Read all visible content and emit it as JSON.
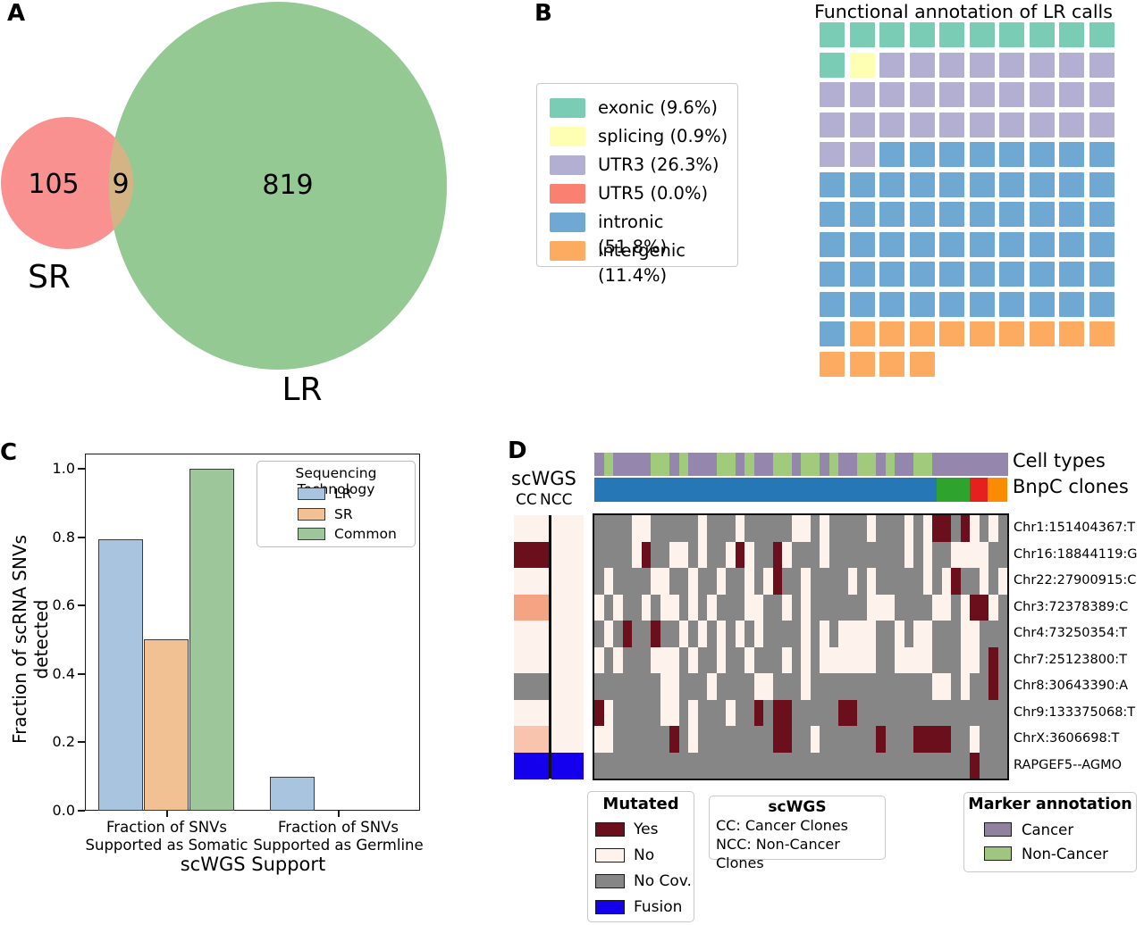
{
  "figure": {
    "panel_a": {
      "label": "A",
      "sr_value": "105",
      "overlap_value": "9",
      "lr_value": "819",
      "sr_label": "SR",
      "lr_label": "LR",
      "colors": {
        "sr": "#f99191",
        "lr": "#94c994",
        "overlap": "#d4b485"
      }
    },
    "panel_b": {
      "label": "B",
      "title": "Functional annotation of LR calls",
      "legend": [
        {
          "code": "E",
          "label": "exonic (9.6%)",
          "color": "#7bccb5"
        },
        {
          "code": "S",
          "label": "splicing (0.9%)",
          "color": "#ffffb3"
        },
        {
          "code": "U",
          "label": "UTR3 (26.3%)",
          "color": "#b3afd3"
        },
        {
          "code": "V",
          "label": "UTR5 (0.0%)",
          "color": "#fa8072"
        },
        {
          "code": "I",
          "label": "intronic (51.8%)",
          "color": "#6fa8d2"
        },
        {
          "code": "N",
          "label": "intergenic (11.4%)",
          "color": "#fcab60"
        }
      ],
      "waffle_rows": [
        "EEEEEEEEEE",
        "ESUUUUUUUU",
        "UUUUUUUUUU",
        "UUUUUUUUUU",
        "UUIIIIIIII",
        "IIIIIIIIII",
        "IIIIIIIIII",
        "IIIIIIIIII",
        "IIIIIIIIII",
        "IIIIIIIIII",
        "INNNNNNNNN",
        "NNNN......"
      ]
    },
    "panel_c": {
      "label": "C",
      "ylabel_line1": "Fraction of scRNA SNVs",
      "ylabel_line2": "detected",
      "xlabel": "scWGS Support",
      "yticks": [
        "1.0",
        "0.8",
        "0.6",
        "0.4",
        "0.2",
        "0.0"
      ],
      "groups": [
        {
          "line1": "Fraction of SNVs",
          "line2": "Supported as Somatic"
        },
        {
          "line1": "Fraction of SNVs",
          "line2": "Supported as Germline"
        }
      ],
      "legend_title": "Sequencing Technology",
      "series": [
        {
          "name": "LR",
          "color": "#a9c4de",
          "values": [
            0.795,
            0.098
          ]
        },
        {
          "name": "SR",
          "color": "#f1c194",
          "values": [
            0.5,
            0
          ]
        },
        {
          "name": "Common",
          "color": "#9ec69b",
          "values": [
            1.0,
            0
          ]
        }
      ]
    },
    "panel_d": {
      "label": "D",
      "scwgs_header": "scWGS",
      "cc_label": "CC",
      "ncc_label": "NCC",
      "celltypes_label": "Cell types",
      "bnpc_label": "BnpC clones",
      "celltype_colors": {
        "P": "#9486ac",
        "G": "#a1ca7c"
      },
      "celltypes_cols": "PGPPPPGGPGPPPGGPGPPGGPGGPGPPGGPGPPGGPPPPPPPP",
      "bnpc_segments": [
        {
          "color": "#2577b5",
          "pct": 83.0
        },
        {
          "color": "#2ea32d",
          "pct": 8.0
        },
        {
          "color": "#e6201e",
          "pct": 4.3
        },
        {
          "color": "#fb8b01",
          "pct": 4.7
        }
      ],
      "cell_colors": {
        "G": "#868686",
        "W": "#fdf3ec",
        "R": "#6b0f1d",
        "B": "#1500ee",
        "S": "#f5a483",
        "T": "#f9c4ad"
      },
      "cc_col": "WRWSWWGWTB",
      "ncc_col": "WWWWWWWWWB",
      "heatmap_rows": [
        "GGGGWWGGGGGWGGGWGGGGGWWGWGGGGWGGGWGWRRGRWGWG",
        "GGGGWRGGWWGWGGWRWGGRWGGGWGGGGGGGGWGWGGWWWWGG",
        "GWGGGGWWGGWGGWGGWGWRGGWGGGGWGWGGGGGWGWRGGWGW",
        "WGWGGWGWWGWGWGGGWWGGWGWGGGGGGWWWGGGGWWGWRRWG",
        "GWGRGGRGGWGWGWGWGWGGGGWGWGWWWWGGWGWWGGGWWGGG",
        "WGWGGGWWWGWGGWGGWGGGWGWGWWWWWWGGWWWWGGGWWGRG",
        "GGGGGGGWWGGGWGGGGWWGGGWGGGGGGGGGGGGGWWGWGGRG",
        "RWGGGGGWWGWGGGWGGRGRRGGGGGRRGGGGGGGGGGGGGGGG",
        "WWGGGGGGRGWGGGGGGGGRRGGWGGGGGGRGGGRRRRGGWGGG",
        "GGGGGGGGGGGGGGGGGGGGGGGGGGGGGGGGGGGGGGGGRGGG"
      ],
      "row_labels": [
        "Chr1:151404367:T",
        "Chr16:18844119:G",
        "Chr22:27900915:C",
        "Chr3:72378389:C",
        "Chr4:73250354:T",
        "Chr7:25123800:T",
        "Chr8:30643390:A",
        "Chr9:133375068:T",
        "ChrX:3606698:T",
        "RAPGEF5--AGMO"
      ],
      "legend_mutated": {
        "title": "Mutated",
        "items": [
          {
            "label": "Yes",
            "color": "#6b0f1d"
          },
          {
            "label": "No",
            "color": "#fdf3ec"
          },
          {
            "label": "No Cov.",
            "color": "#868686"
          },
          {
            "label": "Fusion",
            "color": "#1500ee"
          }
        ]
      },
      "legend_scwgs": {
        "title": "scWGS",
        "line1": "CC: Cancer Clones",
        "line2": "NCC: Non-Cancer Clones"
      },
      "legend_marker": {
        "title": "Marker annotation",
        "items": [
          {
            "label": "Cancer",
            "color": "#90829f"
          },
          {
            "label": "Non-Cancer",
            "color": "#a0c581"
          }
        ]
      }
    }
  },
  "chart_data": [
    {
      "type": "venn",
      "panel": "A",
      "sets": [
        "SR",
        "LR"
      ],
      "values": {
        "SR_only": 105,
        "SR_and_LR": 9,
        "LR_only": 819
      }
    },
    {
      "type": "waffle",
      "panel": "B",
      "title": "Functional annotation of LR calls",
      "categories": [
        "exonic",
        "splicing",
        "UTR3",
        "UTR5",
        "intronic",
        "intergenic"
      ],
      "percentages": [
        9.6,
        0.9,
        26.3,
        0.0,
        51.8,
        11.4
      ],
      "square_counts": [
        11,
        1,
        30,
        0,
        59,
        13
      ],
      "grid": {
        "rows": 12,
        "cols": 10
      },
      "legend_position": "left"
    },
    {
      "type": "bar",
      "panel": "C",
      "categories": [
        "Fraction of SNVs Supported as Somatic",
        "Fraction of SNVs Supported as Germline"
      ],
      "series": [
        {
          "name": "LR",
          "values": [
            0.79,
            0.1
          ]
        },
        {
          "name": "SR",
          "values": [
            0.5,
            0.0
          ]
        },
        {
          "name": "Common",
          "values": [
            1.0,
            0.0
          ]
        }
      ],
      "xlabel": "scWGS Support",
      "ylabel": "Fraction of scRNA SNVs detected",
      "ylim": [
        0.0,
        1.05
      ],
      "yticks": [
        0.0,
        0.2,
        0.4,
        0.6,
        0.8,
        1.0
      ],
      "legend_title": "Sequencing Technology",
      "legend_position": "upper right"
    },
    {
      "type": "heatmap",
      "panel": "D",
      "rows": [
        "Chr1:151404367:T",
        "Chr16:18844119:G",
        "Chr22:27900915:C",
        "Chr3:72378389:C",
        "Chr4:73250354:T",
        "Chr7:25123800:T",
        "Chr8:30643390:A",
        "Chr9:133375068:T",
        "ChrX:3606698:T",
        "RAPGEF5--AGMO"
      ],
      "n_cols": 44,
      "cell_legend": {
        "G": "No Cov.",
        "W": "No",
        "R": "Yes",
        "B": "Fusion"
      },
      "matrix": [
        "GGGGWWGGGGGWGGGWGGGGGWWGWGGGGWGGGWGWRRGRWGWG",
        "GGGGWRGGWWGWGGWRWGGRWGGGWGGGGGGGGWGWGGWWWWGG",
        "GWGGGGWWGGWGGWGGWGWRGGWGGGGWGWGGGGGWGWRGGWGW",
        "WGWGGWGWWGWGWGGGWWGGWGWGGGGGGWWWGGGGWWGWRRWG",
        "GWGRGGRGGWGWGWGWGWGGGGWGWGWWWWGGWGWWGGGWWGGG",
        "WGWGGGWWWGWGGWGGWGGGWGWGWWWWWWGGWWWWGGGWWGRG",
        "GGGGGGGWWGGGWGGGGWWGGGWGGGGGGGGGGGGGWWGWGGRG",
        "RWGGGGGWWGWGGGWGGRGRRGGGGGRRGGGGGGGGGGGGGGGG",
        "WWGGGGGGRGWGGGGGGGGRRGGWGGGGGGRGGGRRRRGGWGGG",
        "GGGGGGGGGGGGGGGGGGGGGGGGGGGGGGGGGGGGGGGGRGGG"
      ],
      "scWGS_columns": {
        "CC": "WRWSWWGWTB",
        "NCC": "WWWWWWWWWB"
      },
      "top_annotations": [
        "Cell types",
        "BnpC clones"
      ],
      "marker_annotation": [
        "Cancer",
        "Non-Cancer"
      ]
    }
  ]
}
